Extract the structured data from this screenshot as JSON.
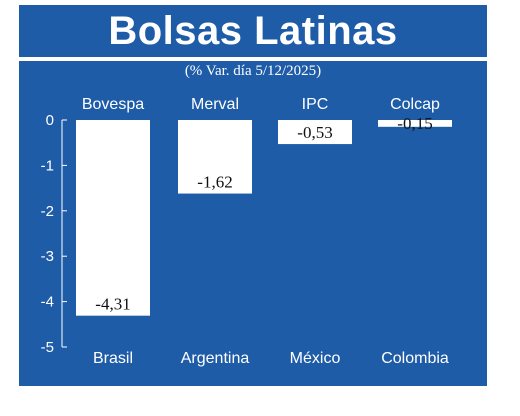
{
  "title": "Bolsas Latinas",
  "subtitle": "(% Var. día 5/12/2025)",
  "colors": {
    "background": "#1e5ca8",
    "bar": "#ffffff",
    "text": "#ffffff",
    "label": "#111111"
  },
  "chart_data": {
    "type": "bar",
    "title": "Bolsas Latinas",
    "subtitle": "(% Var. día 5/12/2025)",
    "indices": [
      "Bovespa",
      "Merval",
      "IPC",
      "Colcap"
    ],
    "categories": [
      "Brasil",
      "Argentina",
      "México",
      "Colombia"
    ],
    "values": [
      -4.31,
      -1.62,
      -0.53,
      -0.15
    ],
    "value_labels": [
      "-4,31",
      "-1,62",
      "-0,53",
      "-0,15"
    ],
    "y_ticks": [
      "0",
      "-1",
      "-2",
      "-3",
      "-4",
      "-5"
    ],
    "ylim": [
      -5,
      0
    ],
    "grid": false
  }
}
